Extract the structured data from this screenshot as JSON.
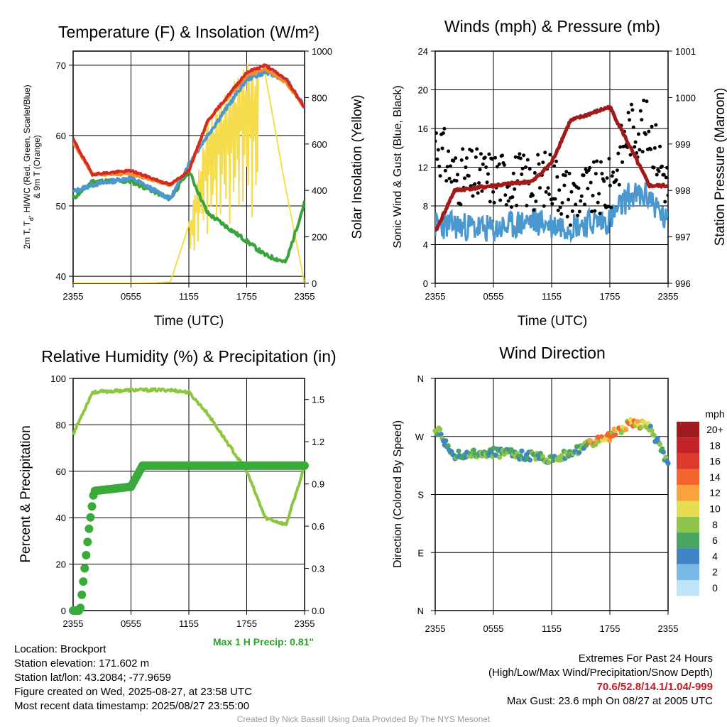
{
  "panels": {
    "temp": {
      "title": "Temperature (F) & Insolation (W/m²)",
      "ylabel_left": [
        "2m T, T",
        "d",
        ", HI/WC (Red, Green, Scarlet/Blue)",
        "& 9m T (Orange)"
      ],
      "ylabel_right": "Solar Insolation (Yellow)",
      "xlabel": "Time (UTC)",
      "y_left_range": [
        39,
        72
      ],
      "y_left_ticks": [
        "40",
        "50",
        "60",
        "70"
      ],
      "y_right_range": [
        0,
        1000
      ],
      "y_right_ticks": [
        "0",
        "200",
        "400",
        "600",
        "800",
        "1000"
      ],
      "x_ticks": [
        "2355",
        "0555",
        "1155",
        "1755",
        "2355"
      ]
    },
    "wind": {
      "title": "Winds (mph) & Pressure (mb)",
      "ylabel_left": "Sonic Wind & Gust (Blue, Black)",
      "ylabel_right": "Station Pressure (Maroon)",
      "xlabel": "Time (UTC)",
      "y_left_range": [
        0,
        24
      ],
      "y_left_ticks": [
        "0",
        "4",
        "8",
        "12",
        "16",
        "20",
        "24"
      ],
      "y_right_range": [
        996,
        1001
      ],
      "y_right_ticks": [
        "996",
        "997",
        "998",
        "999",
        "1000",
        "1001"
      ],
      "x_ticks": [
        "2355",
        "0555",
        "1155",
        "1755",
        "2355"
      ]
    },
    "rh": {
      "title": "Relative Humidity (%) & Precipitation (in)",
      "ylabel_left": "Percent & Precipitation",
      "y_left_range": [
        0,
        100
      ],
      "y_left_ticks": [
        "0",
        "20",
        "40",
        "60",
        "80",
        "100"
      ],
      "y_right_range": [
        0,
        1.65
      ],
      "y_right_ticks": [
        "0.0",
        "0.3",
        "0.6",
        "0.9",
        "1.2",
        "1.5"
      ],
      "x_ticks": [
        "2355",
        "0555",
        "1155",
        "1755",
        "2355"
      ],
      "precip_note": "Max 1 H Precip: 0.81\""
    },
    "dir": {
      "title": "Wind Direction",
      "ylabel_left": "Direction (Colored By Speed)",
      "y_ticks": [
        "N",
        "E",
        "S",
        "W",
        "N"
      ],
      "x_ticks": [
        "2355",
        "0555",
        "1155",
        "1755",
        "2355"
      ],
      "colorbar_title": "mph",
      "colorbar_labels": [
        "20+",
        "18",
        "16",
        "14",
        "12",
        "10",
        "8",
        "6",
        "4",
        "2",
        "0"
      ],
      "colorbar_colors": [
        "#9e1b1f",
        "#c4212a",
        "#de3a2b",
        "#f2652e",
        "#f9a33d",
        "#e6dc50",
        "#8ec54a",
        "#4aa65f",
        "#3f84c4",
        "#7ab9e6",
        "#bfe4f7"
      ]
    }
  },
  "chart_data": [
    {
      "type": "line",
      "title": "Temperature (F) & Insolation (W/m²)",
      "xlabel": "Time (UTC)",
      "x": [
        "2355",
        "0355",
        "0755",
        "1155",
        "1355",
        "1555",
        "1755",
        "1955",
        "2155",
        "2355"
      ],
      "series": [
        {
          "name": "2m T (Red)",
          "values": [
            59.5,
            54.5,
            55,
            53,
            55,
            62,
            69,
            70,
            68,
            64
          ]
        },
        {
          "name": "9m T (Orange)",
          "values": [
            59,
            54.5,
            54.5,
            53,
            55,
            62,
            68.5,
            69.5,
            67.5,
            64
          ]
        },
        {
          "name": "Td (Green)",
          "values": [
            51,
            53.5,
            53.5,
            51,
            55,
            49,
            45,
            43,
            42,
            50.5
          ]
        },
        {
          "name": "HI/WC (Scarlet/Blue)",
          "values": [
            52,
            53,
            54,
            51,
            56,
            60,
            68,
            69,
            68,
            64
          ]
        },
        {
          "name": "Solar Insolation (Yellow)",
          "values": [
            0,
            0,
            0,
            5,
            250,
            700,
            950,
            900,
            400,
            0
          ]
        }
      ]
    },
    {
      "type": "line",
      "title": "Winds (mph) & Pressure (mb)",
      "xlabel": "Time (UTC)",
      "x": [
        "2355",
        "0155",
        "0555",
        "0955",
        "1155",
        "1355",
        "1555",
        "1755",
        "1955",
        "2355"
      ],
      "series": [
        {
          "name": "Sonic Wind (Blue)",
          "values": [
            6,
            6,
            5.5,
            6.5,
            6,
            6,
            6.5,
            9,
            9,
            6
          ]
        },
        {
          "name": "Gust (Black)",
          "values": [
            15,
            11,
            11,
            10.5,
            11,
            9,
            10,
            16,
            16,
            10
          ]
        },
        {
          "name": "Station Pressure (Maroon)",
          "values": [
            997.1,
            998.0,
            998.1,
            998.2,
            998.6,
            999.5,
            999.8,
            999.0,
            998.1,
            998.1
          ]
        }
      ],
      "annotations": [
        "Max Gust: 23.6 mph On 08/27 at 2005 UTC"
      ]
    },
    {
      "type": "line",
      "title": "Relative Humidity (%) & Precipitation (in)",
      "x": [
        "2355",
        "0155",
        "0555",
        "0955",
        "1155",
        "1355",
        "1555",
        "1755",
        "1955",
        "2355"
      ],
      "series": [
        {
          "name": "Relative Humidity",
          "values": [
            76,
            94,
            95,
            95,
            94,
            85,
            60,
            40,
            37,
            62
          ]
        },
        {
          "name": "Precipitation",
          "values": [
            0,
            0.85,
            0.88,
            1.03,
            1.03,
            1.03,
            1.03,
            1.03,
            1.03,
            1.03
          ]
        }
      ],
      "annotations": [
        "Max 1 H Precip: 0.81\""
      ]
    },
    {
      "type": "scatter",
      "title": "Wind Direction",
      "x": [
        "2355",
        "0155",
        "0555",
        "0955",
        "1155",
        "1355",
        "1555",
        "1755",
        "1955",
        "2355"
      ],
      "series": [
        {
          "name": "Direction (deg)",
          "values": [
            285,
            240,
            245,
            240,
            235,
            245,
            270,
            290,
            285,
            230
          ]
        }
      ]
    }
  ],
  "info": {
    "location": "Location: Brockport",
    "elevation": "Station elevation: 171.602 m",
    "latlon": "Station lat/lon: 43.2084; -77.9659",
    "created": "Figure created on Wed, 2025-08-27, at 23:58 UTC",
    "recent": "Most recent data timestamp: 2025/08/27 23:55:00",
    "extremes_title": "Extremes For Past 24 Hours",
    "extremes_subtitle": "(High/Low/Max Wind/Precipitation/Snow Depth)",
    "extremes_values": "70.6/52.8/14.1/1.04/-999",
    "max_gust": "Max Gust: 23.6 mph On 08/27 at 2005 UTC",
    "credit": "Created By Nick Bassill Using Data Provided By The NYS Mesonet"
  },
  "colors": {
    "temp": "#d42a22",
    "nine_m": "#f08c2a",
    "dew": "#3aa33a",
    "hi": "#4b97d0",
    "solar": "#f4dc4c",
    "wind": "#4b97d0",
    "gust": "#000000",
    "pressure": "#a01a1a",
    "rh": "#8cc63f",
    "precip": "#3aaa3a"
  }
}
